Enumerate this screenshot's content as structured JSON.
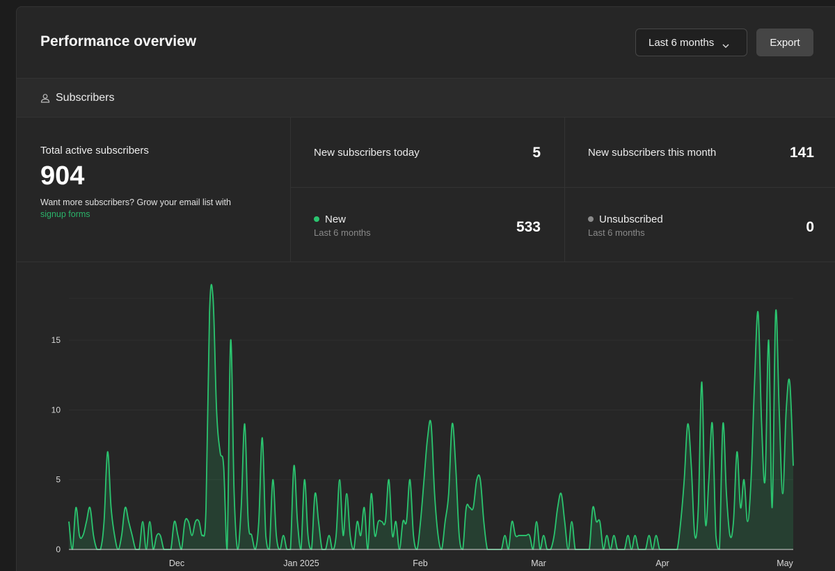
{
  "header": {
    "title": "Performance overview",
    "range_label": "Last 6 months",
    "export_label": "Export"
  },
  "section": {
    "label": "Subscribers",
    "icon": "user-icon"
  },
  "stats": {
    "total": {
      "label": "Total active subscribers",
      "value": "904",
      "cta_text": "Want more subscribers? Grow your email list with",
      "cta_link": "signup forms"
    },
    "today": {
      "label": "New subscribers today",
      "value": "5"
    },
    "month": {
      "label": "New subscribers this month",
      "value": "141"
    },
    "new": {
      "label": "New",
      "sub": "Last 6 months",
      "value": "533"
    },
    "unsub": {
      "label": "Unsubscribed",
      "sub": "Last 6 months",
      "value": "0"
    }
  },
  "colors": {
    "accent": "#2bc46f",
    "muted_dot": "#8a8a8a",
    "background": "#262626"
  },
  "chart_data": {
    "type": "area",
    "series": [
      {
        "values": [
          2,
          0,
          3,
          1,
          1,
          2,
          3,
          1,
          0,
          0,
          2,
          7,
          3,
          1,
          0,
          1,
          3,
          2,
          1,
          0,
          0,
          2,
          0,
          2,
          0,
          1,
          1,
          0,
          0,
          0,
          2,
          1,
          0,
          2,
          2,
          1,
          2,
          2,
          1,
          3,
          17,
          18,
          10,
          7,
          6,
          0,
          15,
          4,
          0,
          3,
          9,
          2,
          1,
          0,
          2,
          8,
          1,
          0,
          5,
          1,
          0,
          1,
          0,
          0,
          6,
          2,
          0,
          5,
          1,
          0,
          4,
          2,
          0,
          0,
          1,
          0,
          1,
          5,
          1,
          4,
          1,
          0,
          2,
          1,
          3,
          0,
          4,
          1,
          2,
          2,
          2,
          5,
          1,
          2,
          0,
          2,
          2,
          5,
          1,
          0,
          2,
          5,
          8,
          9,
          4,
          1,
          0,
          2,
          4,
          9,
          6,
          1,
          0,
          3,
          3,
          3,
          5,
          5,
          2,
          0,
          0,
          0,
          0,
          0,
          1,
          0,
          2,
          1,
          1,
          1,
          1,
          1,
          0,
          2,
          0,
          1,
          0,
          0,
          1,
          3,
          4,
          2,
          0,
          2,
          0,
          0,
          0,
          0,
          0,
          3,
          2,
          2,
          0,
          1,
          0,
          1,
          0,
          0,
          0,
          1,
          0,
          1,
          0,
          0,
          0,
          1,
          0,
          1,
          0,
          0,
          0,
          0,
          0,
          0,
          2,
          5,
          9,
          6,
          1,
          3,
          12,
          2,
          5,
          9,
          1,
          0,
          9,
          4,
          1,
          2,
          7,
          3,
          5,
          2,
          5,
          12,
          17,
          9,
          5,
          15,
          3,
          17,
          10,
          4,
          10,
          12,
          6
        ]
      }
    ],
    "x_ticks": [
      "Dec",
      "Jan 2025",
      "Feb",
      "Mar",
      "Apr",
      "May"
    ],
    "y_ticks": [
      0,
      5,
      10,
      15
    ],
    "ylim": [
      0,
      18
    ],
    "grid": true
  }
}
